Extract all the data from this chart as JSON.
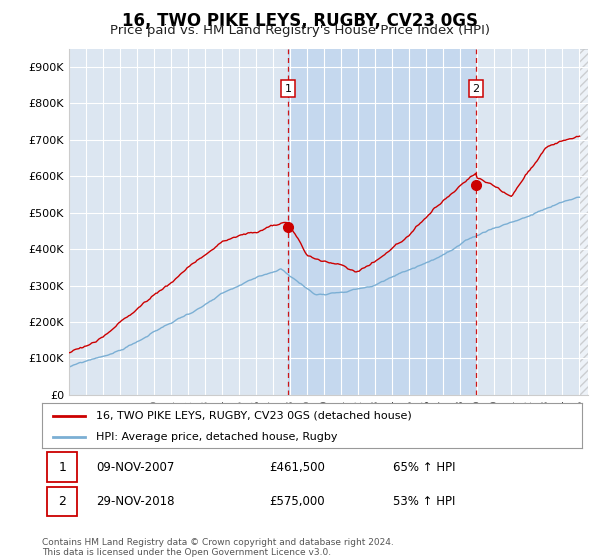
{
  "title": "16, TWO PIKE LEYS, RUGBY, CV23 0GS",
  "subtitle": "Price paid vs. HM Land Registry's House Price Index (HPI)",
  "background_color": "#ffffff",
  "plot_bg_color": "#dce6f1",
  "plot_bg_color2": "#c5d8ee",
  "grid_color": "#ffffff",
  "sale1_year": 2007.86,
  "sale1_price": 461500,
  "sale2_year": 2018.91,
  "sale2_price": 575000,
  "red_line_color": "#cc0000",
  "blue_line_color": "#7bafd4",
  "vline_color": "#cc0000",
  "ylim_min": 0,
  "ylim_max": 950000,
  "xlim_min": 1995,
  "xlim_max": 2025.5,
  "yticks": [
    0,
    100000,
    200000,
    300000,
    400000,
    500000,
    600000,
    700000,
    800000,
    900000
  ],
  "ytick_labels": [
    "£0",
    "£100K",
    "£200K",
    "£300K",
    "£400K",
    "£500K",
    "£600K",
    "£700K",
    "£800K",
    "£900K"
  ],
  "legend_line1": "16, TWO PIKE LEYS, RUGBY, CV23 0GS (detached house)",
  "legend_line2": "HPI: Average price, detached house, Rugby",
  "row1_num": "1",
  "row1_date": "09-NOV-2007",
  "row1_price": "£461,500",
  "row1_hpi": "65% ↑ HPI",
  "row2_num": "2",
  "row2_date": "29-NOV-2018",
  "row2_price": "£575,000",
  "row2_hpi": "53% ↑ HPI",
  "footer": "Contains HM Land Registry data © Crown copyright and database right 2024.\nThis data is licensed under the Open Government Licence v3.0.",
  "title_fontsize": 12,
  "subtitle_fontsize": 9.5,
  "tick_fontsize": 8,
  "legend_fontsize": 8,
  "table_fontsize": 8.5,
  "footer_fontsize": 6.5
}
